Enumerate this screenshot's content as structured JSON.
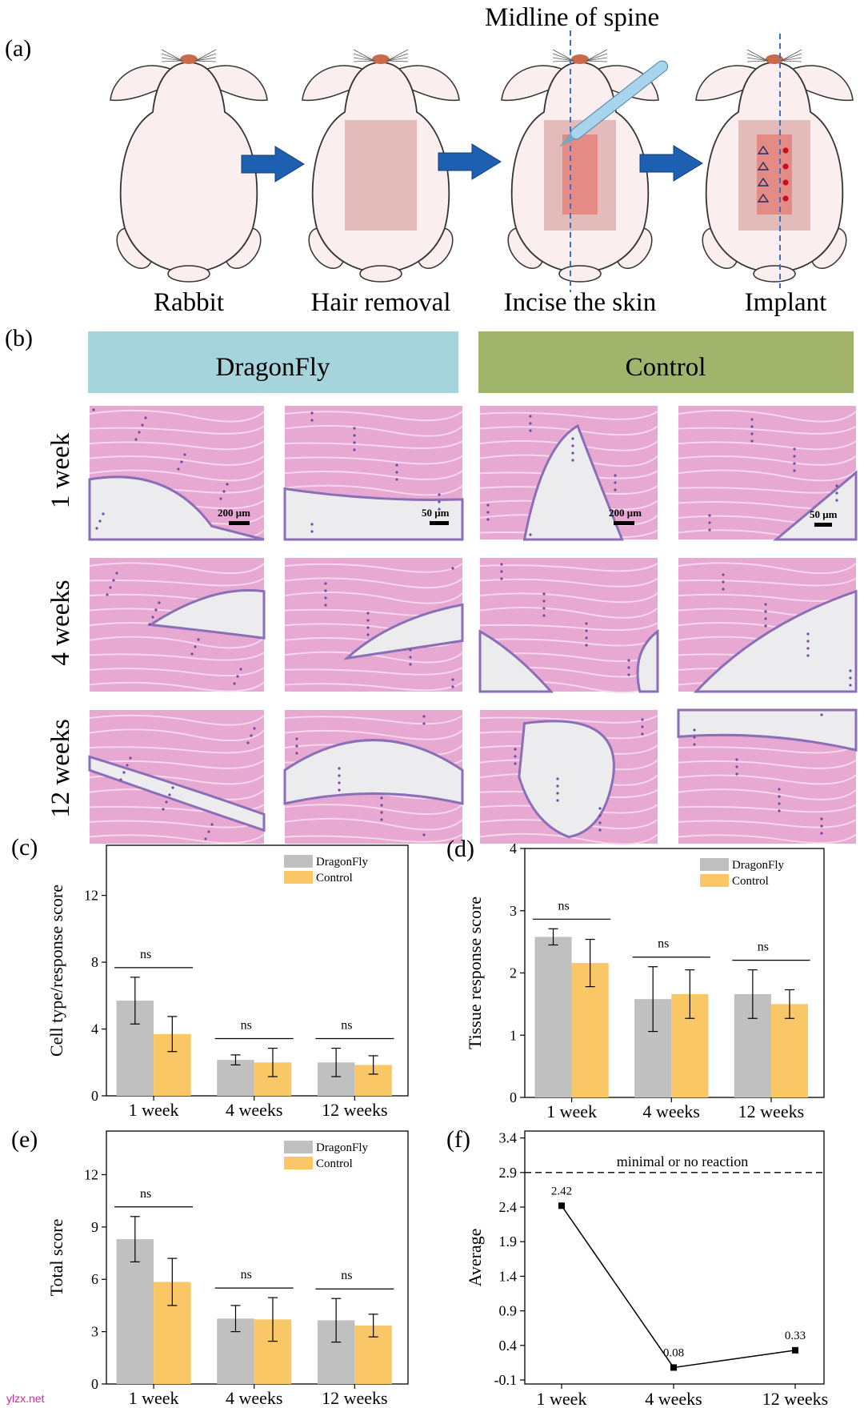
{
  "panel_labels": [
    "(a)",
    "(b)",
    "(c)",
    "(d)",
    "(e)",
    "(f)"
  ],
  "panel_a": {
    "midline_label": "Midline of spine",
    "steps": [
      "Rabbit",
      "Hair removal",
      "Incise the skin",
      "Implant"
    ]
  },
  "panel_b": {
    "groups": [
      "DragonFly",
      "Control"
    ],
    "group_colors": [
      "#a6d4dd",
      "#a1b46b"
    ],
    "rows": [
      "1 week",
      "4 weeks",
      "12 weeks"
    ],
    "scale_bars": [
      "200 μm",
      "50 μm",
      "200 μm",
      "50 μm"
    ]
  },
  "chart_data": [
    {
      "type": "bar",
      "panel": "(c)",
      "ylabel": "Cell type/response score",
      "categories": [
        "1 week",
        "4 weeks",
        "12 weeks"
      ],
      "series": [
        {
          "name": "DragonFly",
          "color": "#c0c0c0",
          "values": [
            5.7,
            2.15,
            2.0
          ],
          "errors": [
            1.4,
            0.3,
            0.85
          ]
        },
        {
          "name": "Control",
          "color": "#f9c766",
          "values": [
            3.7,
            2.0,
            1.85
          ],
          "errors": [
            1.05,
            0.85,
            0.55
          ]
        }
      ],
      "significance": [
        "ns",
        "ns",
        "ns"
      ],
      "yticks": [
        0,
        4,
        8,
        12
      ],
      "ylim": [
        0,
        15
      ],
      "legend": "top-right"
    },
    {
      "type": "bar",
      "panel": "(d)",
      "ylabel": "Tissue response score",
      "categories": [
        "1 week",
        "4 weeks",
        "12 weeks"
      ],
      "series": [
        {
          "name": "DragonFly",
          "color": "#c0c0c0",
          "values": [
            2.58,
            1.58,
            1.66
          ],
          "errors": [
            0.13,
            0.52,
            0.39
          ]
        },
        {
          "name": "Control",
          "color": "#f9c766",
          "values": [
            2.16,
            1.66,
            1.5
          ],
          "errors": [
            0.38,
            0.39,
            0.23
          ]
        }
      ],
      "significance": [
        "ns",
        "ns",
        "ns"
      ],
      "yticks": [
        0,
        1,
        2,
        3,
        4
      ],
      "ylim": [
        0,
        4
      ],
      "legend": "top-right"
    },
    {
      "type": "bar",
      "panel": "(e)",
      "ylabel": "Total score",
      "categories": [
        "1 week",
        "4 weeks",
        "12 weeks"
      ],
      "series": [
        {
          "name": "DragonFly",
          "color": "#c0c0c0",
          "values": [
            8.3,
            3.75,
            3.65
          ],
          "errors": [
            1.3,
            0.75,
            1.25
          ]
        },
        {
          "name": "Control",
          "color": "#f9c766",
          "values": [
            5.85,
            3.7,
            3.35
          ],
          "errors": [
            1.35,
            1.25,
            0.65
          ]
        }
      ],
      "significance": [
        "ns",
        "ns",
        "ns"
      ],
      "yticks": [
        0,
        3,
        6,
        9,
        12
      ],
      "ylim": [
        0,
        14.5
      ],
      "legend": "top-right"
    },
    {
      "type": "line",
      "panel": "(f)",
      "ylabel": "Average",
      "categories": [
        "1 week",
        "4 weeks",
        "12 weeks"
      ],
      "values": [
        2.42,
        0.08,
        0.33
      ],
      "data_labels": [
        "2.42",
        "0.08",
        "0.33"
      ],
      "reference_line": {
        "y": 2.9,
        "label": "minimal or no reaction"
      },
      "yticks": [
        -0.1,
        0.4,
        0.9,
        1.4,
        1.9,
        2.4,
        2.9,
        3.4
      ],
      "ylim": [
        -0.1,
        3.5
      ]
    }
  ],
  "watermark": "ylzx.net"
}
